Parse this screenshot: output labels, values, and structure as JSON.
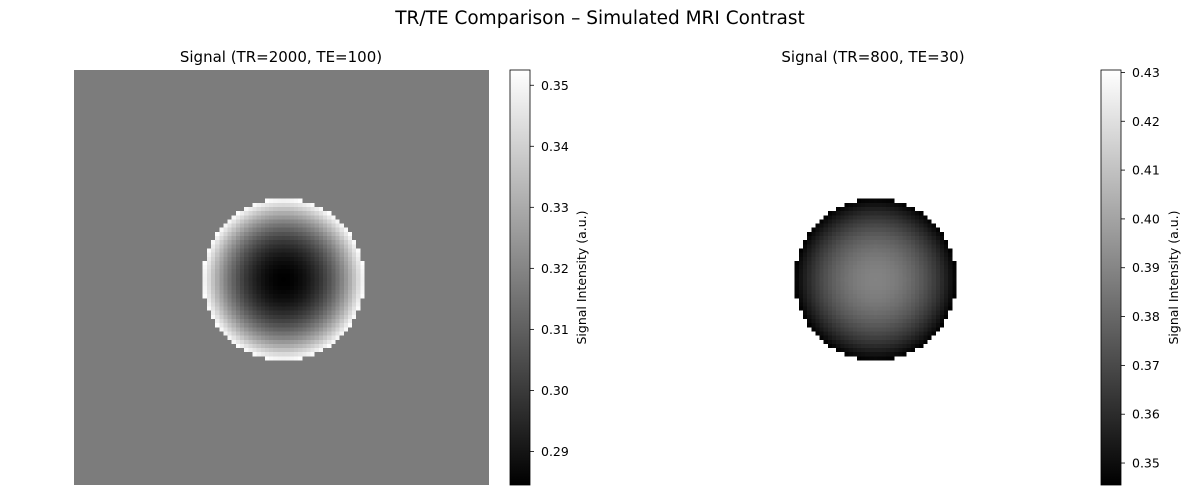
{
  "figure": {
    "suptitle": "TR/TE Comparison – Simulated MRI Contrast"
  },
  "chart_data": [
    {
      "type": "heatmap",
      "title": "Signal (TR=2000, TE=100)",
      "xlabel": "",
      "ylabel": "",
      "axes_visible": false,
      "colormap": "gray",
      "grid_size": [
        100,
        100
      ],
      "description": "uniform background with a disk-shaped phantom whose signal is darkest at the center and brightest at the rim",
      "background_value": 0.3175,
      "disk_center_value": 0.2845,
      "disk_rim_value": 0.3525,
      "colorbar": {
        "label": "Signal Intensity (a.u.)",
        "range": [
          0.2845,
          0.3525
        ],
        "ticks": [
          0.29,
          0.3,
          0.31,
          0.32,
          0.33,
          0.34,
          0.35
        ],
        "tick_labels": [
          "0.29",
          "0.30",
          "0.31",
          "0.32",
          "0.33",
          "0.34",
          "0.35"
        ]
      }
    },
    {
      "type": "heatmap",
      "title": "Signal (TR=800, TE=30)",
      "xlabel": "",
      "ylabel": "",
      "axes_visible": false,
      "colormap": "gray",
      "grid_size": [
        100,
        100
      ],
      "description": "white background with a disk-shaped phantom whose signal is brightest at the center and darkest at the rim",
      "background_value": null,
      "disk_center_value": 0.389,
      "disk_rim_value": 0.3455,
      "colorbar": {
        "label": "Signal Intensity (a.u.)",
        "range": [
          0.3455,
          0.4305
        ],
        "ticks": [
          0.35,
          0.36,
          0.37,
          0.38,
          0.39,
          0.4,
          0.41,
          0.42,
          0.43
        ],
        "tick_labels": [
          "0.35",
          "0.36",
          "0.37",
          "0.38",
          "0.39",
          "0.40",
          "0.41",
          "0.42",
          "0.43"
        ]
      }
    }
  ]
}
